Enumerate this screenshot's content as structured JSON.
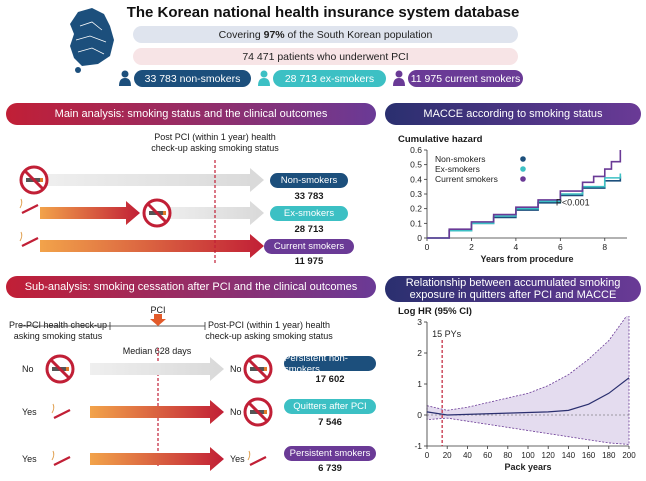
{
  "header": {
    "title": "The Korean national health insurance system database",
    "coverage_pre": "Covering ",
    "coverage_bold": "97%",
    "coverage_post": " of the South Korean population",
    "patients": "74 471 patients who underwent PCI"
  },
  "groups": [
    {
      "label": "33 783 non-smokers",
      "color": "#1c4f7c"
    },
    {
      "label": "28 713 ex-smokers",
      "color": "#3cc0c4"
    },
    {
      "label": "11 975 current smokers",
      "color": "#6a3a96"
    }
  ],
  "main_analysis": {
    "header": "Main analysis: smoking status and the clinical outcomes",
    "checkup_label": "Post PCI (within 1 year) health check-up asking smoking status",
    "rows": [
      {
        "tag": "Non-smokers",
        "count": "33 783",
        "color": "#1c4f7c"
      },
      {
        "tag": "Ex-smokers",
        "count": "28 713",
        "color": "#3cc0c4"
      },
      {
        "tag": "Current smokers",
        "count": "11 975",
        "color": "#6a3a96"
      }
    ]
  },
  "macce": {
    "header": "MACCE according to smoking status",
    "chart_data": {
      "type": "line",
      "ylabel": "Cumulative hazard",
      "xlabel": "Years from procedure",
      "xlim": [
        0,
        9
      ],
      "ylim": [
        0,
        0.6
      ],
      "x_ticks": [
        0,
        2,
        4,
        6,
        8
      ],
      "y_ticks": [
        0,
        0.1,
        0.2,
        0.3,
        0.4,
        0.5,
        0.6
      ],
      "annotation": "P<0.001",
      "legend_position": "top-left",
      "series": [
        {
          "name": "Non-smokers",
          "color": "#1c4f7c",
          "x": [
            0,
            1,
            2,
            3,
            4,
            5,
            6,
            7,
            8,
            8.7
          ],
          "y": [
            0,
            0.05,
            0.1,
            0.14,
            0.19,
            0.24,
            0.29,
            0.34,
            0.39,
            0.42
          ]
        },
        {
          "name": "Ex-smokers",
          "color": "#3cc0c4",
          "x": [
            0,
            1,
            2,
            3,
            4,
            5,
            6,
            7,
            8,
            8.7
          ],
          "y": [
            0,
            0.05,
            0.1,
            0.15,
            0.2,
            0.25,
            0.3,
            0.35,
            0.41,
            0.44
          ]
        },
        {
          "name": "Current smokers",
          "color": "#6a3a96",
          "x": [
            0,
            1,
            2,
            3,
            4,
            5,
            6,
            7,
            7.5,
            8,
            8.3,
            8.7
          ],
          "y": [
            0,
            0.06,
            0.11,
            0.16,
            0.21,
            0.26,
            0.32,
            0.38,
            0.42,
            0.47,
            0.52,
            0.6
          ]
        }
      ]
    }
  },
  "sub_analysis": {
    "header": "Sub-analysis: smoking cessation after PCI and the clinical outcomes",
    "pre_label": "Pre-PCI health check-up asking smoking status",
    "pci_label": "PCI",
    "post_label": "Post-PCI (within 1 year) health check-up asking smoking status",
    "median_label": "Median 628 days",
    "rows": [
      {
        "pre": "No",
        "post": "No",
        "tag": "Persistent non-smokers",
        "count": "17 602",
        "color": "#1c4f7c"
      },
      {
        "pre": "Yes",
        "post": "No",
        "tag": "Quitters after PCI",
        "count": "7 546",
        "color": "#3cc0c4"
      },
      {
        "pre": "Yes",
        "post": "Yes",
        "tag": "Persistent smokers",
        "count": "6 739",
        "color": "#6a3a96"
      }
    ]
  },
  "relationship": {
    "header": "Relationship between accumulated smoking exposure in quitters after PCI and MACCE",
    "chart_data": {
      "type": "line",
      "ylabel": "Log HR (95% CI)",
      "xlabel": "Pack years",
      "xlim": [
        0,
        200
      ],
      "ylim": [
        -1,
        3
      ],
      "x_ticks": [
        0,
        20,
        40,
        60,
        80,
        100,
        120,
        140,
        160,
        180,
        200
      ],
      "y_ticks": [
        -1,
        0,
        1,
        2,
        3
      ],
      "annotation": "15 PYs",
      "reference_x": 15,
      "series": [
        {
          "name": "",
          "x": [
            0,
            20,
            40,
            60,
            80,
            100,
            120,
            140,
            160,
            180,
            200
          ],
          "y": [
            0.1,
            0,
            0.02,
            0.04,
            0.06,
            0.08,
            0.1,
            0.15,
            0.35,
            0.7,
            1.2
          ],
          "upper": [
            0.3,
            0.15,
            0.25,
            0.4,
            0.55,
            0.7,
            0.95,
            1.3,
            1.8,
            2.4,
            3.3
          ],
          "lower": [
            -0.15,
            -0.1,
            -0.2,
            -0.3,
            -0.4,
            -0.5,
            -0.6,
            -0.7,
            -0.8,
            -0.9,
            -0.95
          ]
        }
      ]
    }
  }
}
